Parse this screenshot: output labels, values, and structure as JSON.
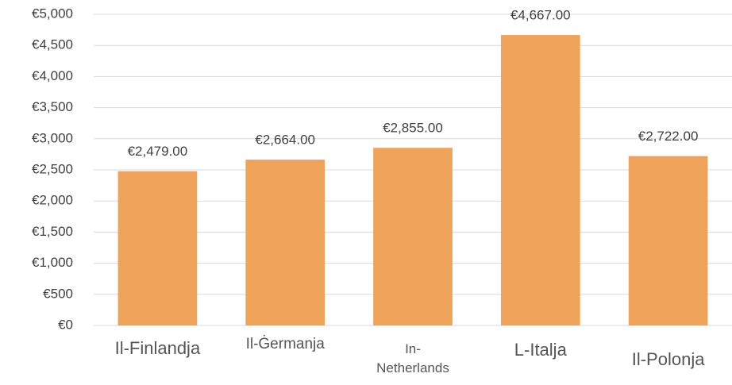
{
  "chart_data": {
    "type": "bar",
    "categories": [
      "Il-Finlandja",
      "Il-Ġermanja",
      "In-Netherlands",
      "L-Italja",
      "Il-Polonja"
    ],
    "values": [
      2479,
      2664,
      2855,
      4667,
      2722
    ],
    "value_labels": [
      "€2,479.00",
      "€2,664.00",
      "€2,855.00",
      "€4,667.00",
      "€2,722.00"
    ],
    "color": "#eda35a",
    "ylim": [
      0,
      5000
    ],
    "yticks": [
      {
        "value": 0,
        "label": "€0"
      },
      {
        "value": 500,
        "label": "€500"
      },
      {
        "value": 1000,
        "label": "€1,000"
      },
      {
        "value": 1500,
        "label": "€1,500"
      },
      {
        "value": 2000,
        "label": "€2,000"
      },
      {
        "value": 2500,
        "label": "€2,500"
      },
      {
        "value": 3000,
        "label": "€3,000"
      },
      {
        "value": 3500,
        "label": "€3,500"
      },
      {
        "value": 4000,
        "label": "€4,000"
      },
      {
        "value": 4500,
        "label": "€4,500"
      },
      {
        "value": 5000,
        "label": "€5,000"
      }
    ],
    "grid": true
  }
}
